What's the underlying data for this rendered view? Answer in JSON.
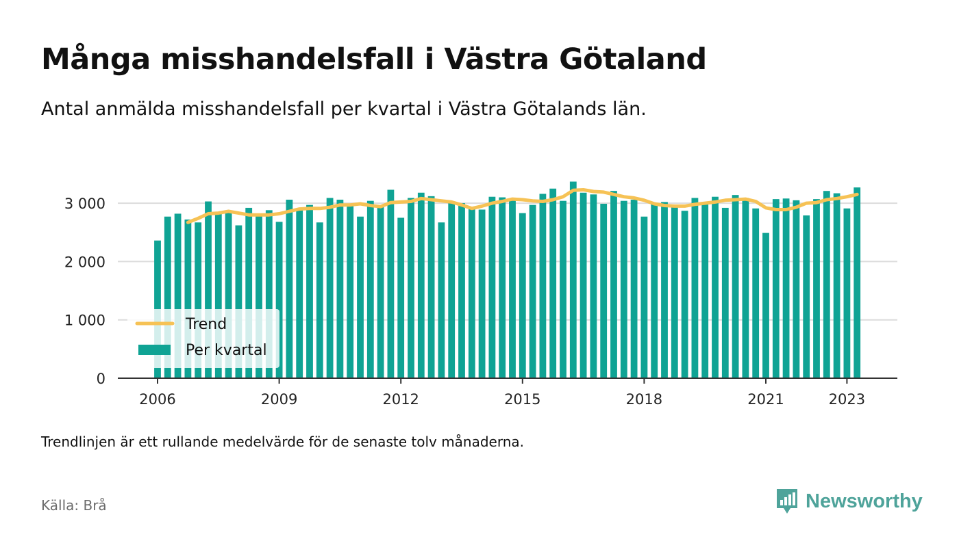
{
  "header": {
    "title": "Många misshandelsfall i Västra Götaland",
    "subtitle": "Antal anmälda misshandelsfall per kvartal i Västra Götalands län."
  },
  "footer": {
    "note": "Trendlinjen är ett rullande medelvärde för de senaste tolv månaderna.",
    "source": "Källa: Brå",
    "brand": "Newsworthy",
    "brand_icon": "bar-chart-speech-bubble-icon"
  },
  "colors": {
    "bars": "#0fa394",
    "trend": "#f6c255",
    "grid": "#dcdcdc",
    "axis": "#333333",
    "brand": "#4ea39a"
  },
  "chart_data": {
    "type": "bar",
    "x_start_year": 2006,
    "quarters_per_year": 4,
    "x_ticks": [
      "2006",
      "2009",
      "2012",
      "2015",
      "2018",
      "2021",
      "2023"
    ],
    "y_ticks": [
      "0",
      "1 000",
      "2 000",
      "3 000"
    ],
    "ylim": [
      0,
      3500
    ],
    "grid": true,
    "legend_position": "bottom-left",
    "series": [
      {
        "name": "Per kvartal",
        "kind": "bar",
        "values": [
          2360,
          2770,
          2820,
          2720,
          2670,
          3030,
          2840,
          2870,
          2620,
          2920,
          2790,
          2880,
          2680,
          3060,
          2900,
          2970,
          2670,
          3090,
          3060,
          2960,
          2770,
          3040,
          2960,
          3230,
          2750,
          3090,
          3180,
          3120,
          2670,
          3030,
          3000,
          2900,
          2890,
          3110,
          3100,
          3070,
          2830,
          2970,
          3160,
          3250,
          3040,
          3370,
          3180,
          3150,
          2990,
          3210,
          3040,
          3060,
          2770,
          3000,
          3020,
          2930,
          2870,
          3090,
          3000,
          3110,
          2920,
          3140,
          3090,
          2910,
          2490,
          3070,
          3080,
          3050,
          2790,
          3070,
          3210,
          3170,
          2910,
          3270
        ]
      },
      {
        "name": "Trend",
        "kind": "line",
        "values": [
          null,
          null,
          null,
          2670,
          2740,
          2820,
          2830,
          2860,
          2830,
          2800,
          2800,
          2800,
          2820,
          2860,
          2900,
          2910,
          2910,
          2930,
          2970,
          2970,
          2990,
          2960,
          2940,
          3010,
          3020,
          3030,
          3080,
          3060,
          3040,
          3020,
          2970,
          2910,
          2950,
          3000,
          3030,
          3070,
          3060,
          3040,
          3030,
          3060,
          3110,
          3220,
          3230,
          3200,
          3190,
          3150,
          3110,
          3090,
          3050,
          2990,
          2960,
          2950,
          2950,
          2980,
          3000,
          3020,
          3050,
          3060,
          3070,
          3030,
          2920,
          2890,
          2890,
          2930,
          3000,
          3010,
          3060,
          3080,
          3110,
          3150
        ]
      }
    ]
  }
}
